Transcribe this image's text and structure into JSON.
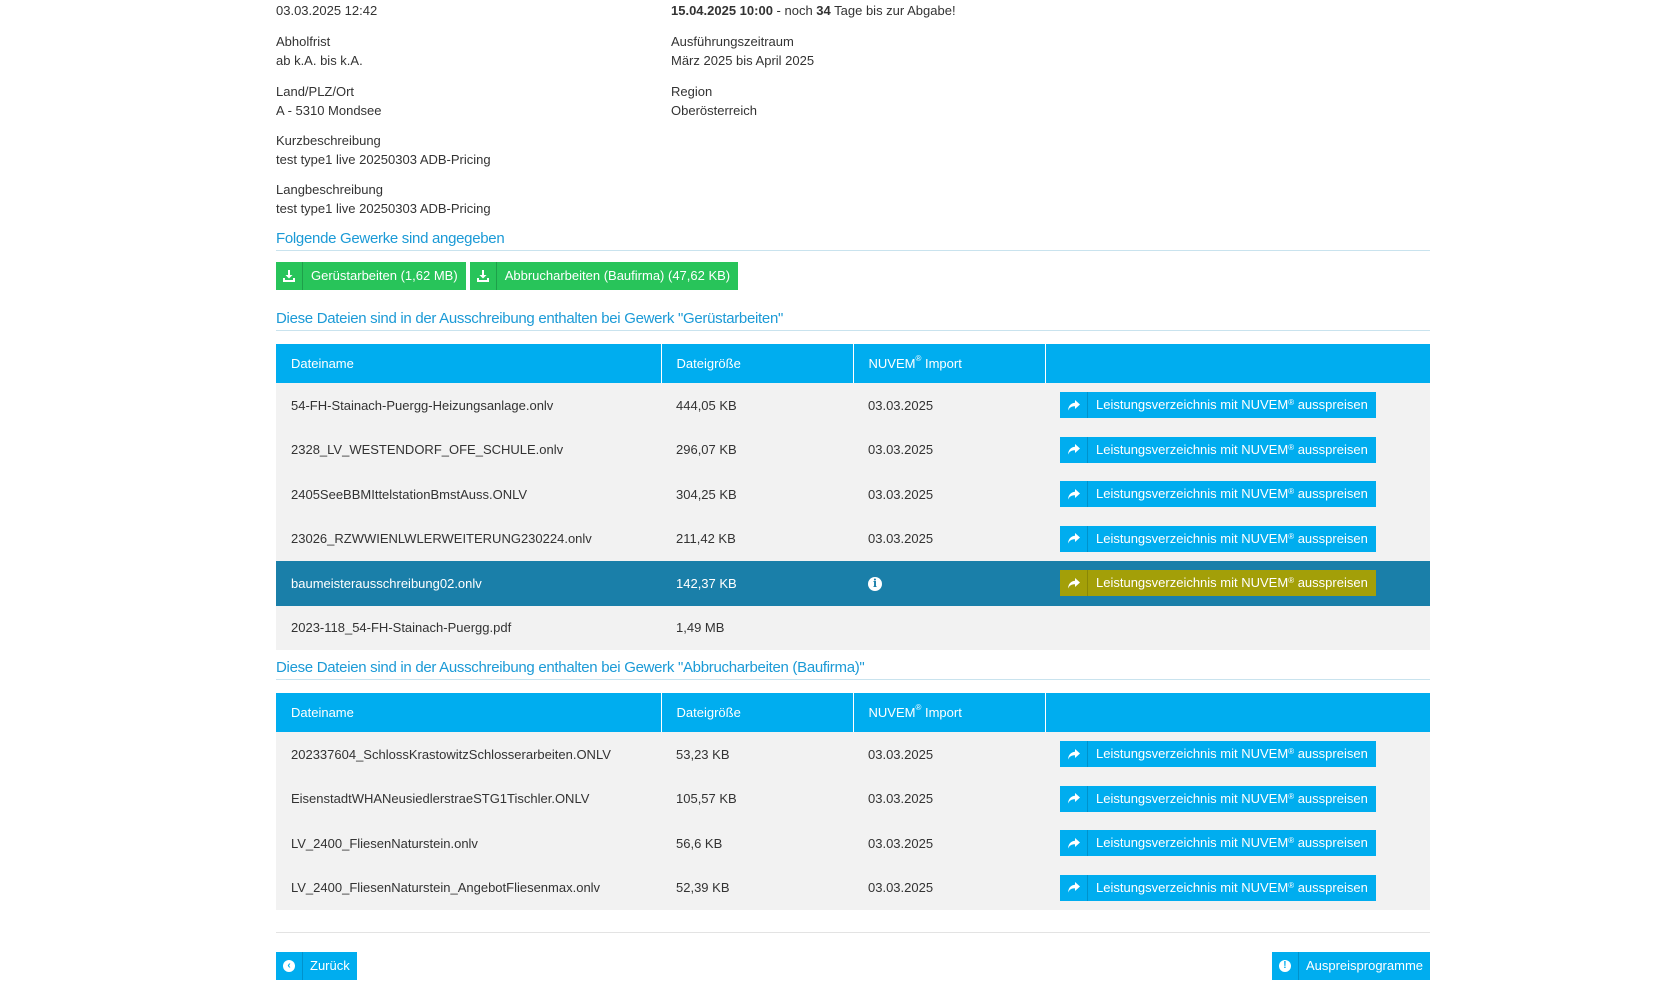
{
  "meta": {
    "published_date": "03.03.2025 12:42",
    "deadline_date": "15.04.2025 10:00",
    "deadline_mid": " - noch ",
    "deadline_days": "34",
    "deadline_suffix": " Tage bis zur Abgabe!",
    "pickup_label": "Abholfrist",
    "pickup_value": "ab k.A. bis k.A.",
    "execution_label": "Ausführungszeitraum",
    "execution_value": "März 2025 bis April 2025",
    "location_label": "Land/PLZ/Ort",
    "location_value": "A - 5310 Mondsee",
    "region_label": "Region",
    "region_value": "Oberösterreich",
    "short_desc_label": "Kurzbeschreibung",
    "short_desc_value": "test type1 live 20250303 ADB-Pricing",
    "long_desc_label": "Langbeschreibung",
    "long_desc_value": "test type1 live 20250303 ADB-Pricing"
  },
  "trades": {
    "title": "Folgende Gewerke sind angegeben",
    "downloads": [
      {
        "label": "Gerüstarbeiten (1,62 MB)"
      },
      {
        "label": "Abbrucharbeiten (Baufirma) (47,62 KB)"
      }
    ]
  },
  "table_headers": {
    "name": "Dateiname",
    "size": "Dateigröße",
    "import": "NUVEM",
    "import_sup": "®",
    "import_suffix": " Import"
  },
  "price_button": {
    "prefix": "Leistungsverzeichnis mit NUVEM",
    "sup": "®",
    "suffix": " ausspreisen"
  },
  "section1": {
    "title": "Diese Dateien sind in der Ausschreibung enthalten bei Gewerk \"Gerüstarbeiten\"",
    "rows": [
      {
        "name": "54-FH-Stainach-Puergg-Heizungsanlage.onlv",
        "size": "444,05 KB",
        "import": "03.03.2025"
      },
      {
        "name": "2328_LV_WESTENDORF_OFE_SCHULE.onlv",
        "size": "296,07 KB",
        "import": "03.03.2025"
      },
      {
        "name": "2405SeeBBMIttelstationBmstAuss.ONLV",
        "size": "304,25 KB",
        "import": "03.03.2025"
      },
      {
        "name": "23026_RZWWIENLWLERWEITERUNG230224.onlv",
        "size": "211,42 KB",
        "import": "03.03.2025"
      },
      {
        "name": "baumeisterausschreibung02.onlv",
        "size": "142,37 KB",
        "import": ""
      },
      {
        "name": "2023-118_54-FH-Stainach-Puergg.pdf",
        "size": "1,49 MB",
        "import": ""
      }
    ]
  },
  "section2": {
    "title": "Diese Dateien sind in der Ausschreibung enthalten bei Gewerk \"Abbrucharbeiten (Baufirma)\"",
    "rows": [
      {
        "name": "202337604_SchlossKrastowitzSchlosserarbeiten.ONLV",
        "size": "53,23 KB",
        "import": "03.03.2025"
      },
      {
        "name": "EisenstadtWHANeusiedlerstraeSTG1Tischler.ONLV",
        "size": "105,57 KB",
        "import": "03.03.2025"
      },
      {
        "name": "LV_2400_FliesenNaturstein.onlv",
        "size": "56,6 KB",
        "import": "03.03.2025"
      },
      {
        "name": "LV_2400_FliesenNaturstein_AngebotFliesenmax.onlv",
        "size": "52,39 KB",
        "import": "03.03.2025"
      }
    ]
  },
  "footer": {
    "back_label": "Zurück",
    "programs_label": "Auspreisprogramme"
  },
  "colors": {
    "header_blue": "#00adef",
    "selected_row": "#1a7fa9",
    "selected_button": "#a39f08",
    "download_green": "#28c45a",
    "title_blue": "#1b9ad6"
  },
  "icons": {
    "download": "download-icon",
    "share": "share-arrow-icon",
    "info": "info-icon",
    "back": "arrow-left-circle-icon",
    "programs": "exclamation-circle-icon"
  }
}
